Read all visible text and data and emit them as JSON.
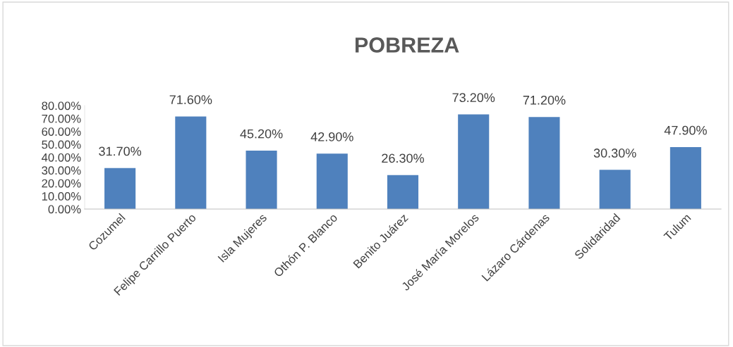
{
  "chart_data": {
    "type": "bar",
    "title": "POBREZA",
    "categories": [
      "Cozumel",
      "Felipe Carrillo Puerto",
      "Isla Mujeres",
      "Othón P. Blanco",
      "Benito Juárez",
      "José María Morelos",
      "Lázaro Cárdenas",
      "Solidaridad",
      "Tulum"
    ],
    "values": [
      31.7,
      71.6,
      45.2,
      42.9,
      26.3,
      73.2,
      71.2,
      30.3,
      47.9
    ],
    "value_labels": [
      "31.70%",
      "71.60%",
      "45.20%",
      "42.90%",
      "26.30%",
      "73.20%",
      "71.20%",
      "30.30%",
      "47.90%"
    ],
    "color": "#4f81bd",
    "ylim": [
      0,
      80
    ],
    "yticks": [
      {
        "value": 0,
        "label": "0.00%"
      },
      {
        "value": 10,
        "label": "10.00%"
      },
      {
        "value": 20,
        "label": "20.00%"
      },
      {
        "value": 30,
        "label": "30.00%"
      },
      {
        "value": 40,
        "label": "40.00%"
      },
      {
        "value": 50,
        "label": "50.00%"
      },
      {
        "value": 60,
        "label": "60.00%"
      },
      {
        "value": 70,
        "label": "70.00%"
      },
      {
        "value": 80,
        "label": "80.00%"
      }
    ],
    "grid": false,
    "legend": false
  }
}
